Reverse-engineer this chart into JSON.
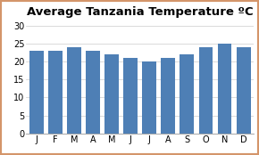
{
  "title": "Average Tanzania Temperature ºC",
  "categories": [
    "J",
    "F",
    "M",
    "A",
    "M",
    "J",
    "J",
    "A",
    "S",
    "O",
    "N",
    "D"
  ],
  "values": [
    23,
    23,
    24,
    23,
    22,
    21,
    20,
    21,
    22,
    24,
    25,
    24
  ],
  "bar_color": "#4e7fb5",
  "ylim": [
    0,
    32
  ],
  "yticks": [
    0,
    5,
    10,
    15,
    20,
    25,
    30
  ],
  "background_color": "#ffffff",
  "border_color": "#d4956a",
  "title_fontsize": 9.5,
  "tick_fontsize": 7.0
}
